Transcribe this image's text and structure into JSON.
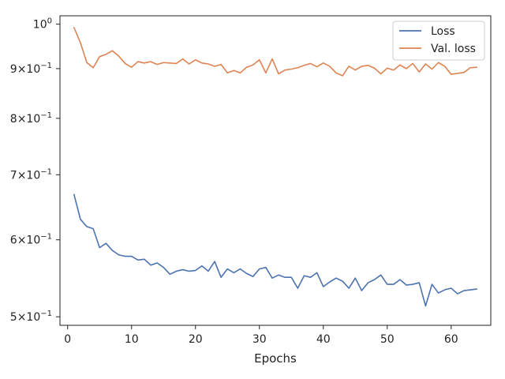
{
  "chart_data": {
    "type": "line",
    "title": "",
    "xlabel": "Epochs",
    "ylabel": "",
    "yscale": "log",
    "xlim": [
      -1.2,
      66.2
    ],
    "ylim": [
      0.49,
      1.02
    ],
    "grid": false,
    "legend_position": "top-right",
    "x_ticks": [
      0,
      10,
      20,
      30,
      40,
      50,
      60
    ],
    "y_ticks": [
      {
        "value": 1.0,
        "mantissa": "10",
        "exponent": "0"
      },
      {
        "value": 0.9,
        "mantissa": "9×10",
        "exponent": "−1"
      },
      {
        "value": 0.8,
        "mantissa": "8×10",
        "exponent": "−1"
      },
      {
        "value": 0.7,
        "mantissa": "7×10",
        "exponent": "−1"
      },
      {
        "value": 0.6,
        "mantissa": "6×10",
        "exponent": "−1"
      },
      {
        "value": 0.5,
        "mantissa": "5×10",
        "exponent": "−1"
      }
    ],
    "x": [
      1,
      2,
      3,
      4,
      5,
      6,
      7,
      8,
      9,
      10,
      11,
      12,
      13,
      14,
      15,
      16,
      17,
      18,
      19,
      20,
      21,
      22,
      23,
      24,
      25,
      26,
      27,
      28,
      29,
      30,
      31,
      32,
      33,
      34,
      35,
      36,
      37,
      38,
      39,
      40,
      41,
      42,
      43,
      44,
      45,
      46,
      47,
      48,
      49,
      50,
      51,
      52,
      53,
      54,
      55,
      56,
      57,
      58,
      59,
      60,
      61,
      62,
      63,
      64
    ],
    "series": [
      {
        "name": "Loss",
        "color": "#4c72b0",
        "values": [
          0.668,
          0.63,
          0.619,
          0.616,
          0.589,
          0.595,
          0.585,
          0.579,
          0.577,
          0.577,
          0.572,
          0.573,
          0.565,
          0.568,
          0.562,
          0.553,
          0.557,
          0.559,
          0.557,
          0.558,
          0.564,
          0.557,
          0.57,
          0.549,
          0.56,
          0.555,
          0.56,
          0.554,
          0.55,
          0.56,
          0.562,
          0.548,
          0.552,
          0.549,
          0.549,
          0.535,
          0.551,
          0.549,
          0.555,
          0.537,
          0.543,
          0.548,
          0.544,
          0.535,
          0.548,
          0.532,
          0.542,
          0.546,
          0.552,
          0.54,
          0.54,
          0.546,
          0.539,
          0.54,
          0.542,
          0.513,
          0.54,
          0.529,
          0.533,
          0.535,
          0.528,
          0.532,
          0.533,
          0.534
        ]
      },
      {
        "name": "Val. loss",
        "color": "#dd8452",
        "values": [
          0.992,
          0.957,
          0.913,
          0.902,
          0.926,
          0.931,
          0.939,
          0.927,
          0.911,
          0.903,
          0.915,
          0.912,
          0.915,
          0.909,
          0.913,
          0.912,
          0.911,
          0.921,
          0.91,
          0.919,
          0.912,
          0.91,
          0.905,
          0.909,
          0.891,
          0.896,
          0.891,
          0.903,
          0.908,
          0.919,
          0.891,
          0.921,
          0.889,
          0.897,
          0.899,
          0.902,
          0.907,
          0.911,
          0.904,
          0.912,
          0.905,
          0.891,
          0.885,
          0.905,
          0.897,
          0.905,
          0.907,
          0.901,
          0.889,
          0.901,
          0.897,
          0.908,
          0.9,
          0.911,
          0.893,
          0.91,
          0.899,
          0.913,
          0.905,
          0.888,
          0.89,
          0.892,
          0.902,
          0.903
        ]
      }
    ]
  }
}
